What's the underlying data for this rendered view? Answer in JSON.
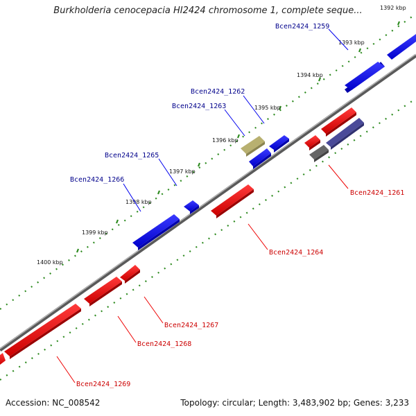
{
  "title": "Burkholderia cenocepacia HI2424 chromosome 1, complete seque...",
  "footer": {
    "accession": "Accession: NC_008542",
    "summary": "Topology: circular; Length: 3,483,902 bp; Genes: 3,233"
  },
  "colors": {
    "backbone": "#777777",
    "forward_gene": "#0000ee",
    "reverse_gene": "#ee0000",
    "ruler": "#2e8b20",
    "forward_label": "#00008b",
    "reverse_label": "#cc0000",
    "rna_gene": "#b8b070",
    "other_gene_dark": "#666666",
    "other_gene_purple": "#4a4a99"
  },
  "ticks": [
    {
      "label": "1392 kbp"
    },
    {
      "label": "1393 kbp"
    },
    {
      "label": "1394 kbp"
    },
    {
      "label": "1395 kbp"
    },
    {
      "label": "1396 kbp"
    },
    {
      "label": "1397 kbp"
    },
    {
      "label": "1398 kbp"
    },
    {
      "label": "1399 kbp"
    },
    {
      "label": "1400 kbp"
    }
  ],
  "gene_labels": {
    "bcen1259": "Bcen2424_1259",
    "bcen1261": "Bcen2424_1261",
    "bcen1262": "Bcen2424_1262",
    "bcen1263": "Bcen2424_1263",
    "bcen1264": "Bcen2424_1264",
    "bcen1265": "Bcen2424_1265",
    "bcen1266": "Bcen2424_1266",
    "bcen1267": "Bcen2424_1267",
    "bcen1268": "Bcen2424_1268",
    "bcen1269": "Bcen2424_1269"
  }
}
